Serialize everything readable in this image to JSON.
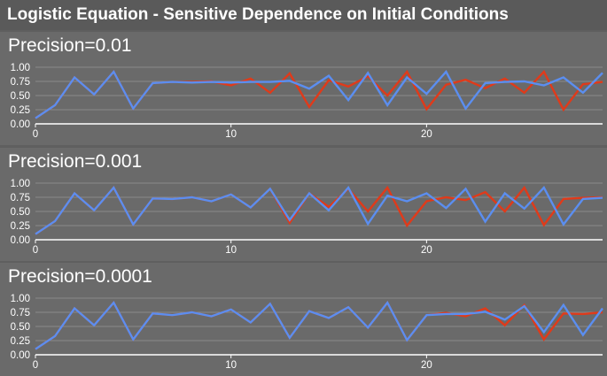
{
  "app_title": "Logistic Equation - Sensitive Dependence on Initial Conditions",
  "colors": {
    "series_a": "#e03a1a",
    "series_b": "#5b8ef0",
    "grid": "#8a8a8a",
    "axis": "#ffffff",
    "panel_bg": "#6a6a6a"
  },
  "chart_data": [
    {
      "type": "line",
      "title": "Precision=0.01",
      "xlim": [
        0,
        29
      ],
      "ylim": [
        0,
        1
      ],
      "x_ticks": [
        0,
        10,
        20
      ],
      "y_ticks": [
        "1.00",
        "0.75",
        "0.50",
        "0.25",
        "0.00"
      ],
      "x": [
        0,
        1,
        2,
        3,
        4,
        5,
        6,
        7,
        8,
        9,
        10,
        11,
        12,
        13,
        14,
        15,
        16,
        17,
        18,
        19,
        20,
        21,
        22,
        23,
        24,
        25,
        26,
        27,
        28,
        29
      ],
      "series": [
        {
          "values": [
            0.1,
            0.33,
            0.82,
            0.52,
            0.92,
            0.27,
            0.72,
            0.74,
            0.74,
            0.75,
            0.68,
            0.8,
            0.55,
            0.89,
            0.3,
            0.77,
            0.66,
            0.84,
            0.5,
            0.92,
            0.26,
            0.69,
            0.78,
            0.63,
            0.8,
            0.55,
            0.92,
            0.25,
            0.7,
            0.74
          ]
        },
        {
          "values": [
            0.1,
            0.33,
            0.82,
            0.52,
            0.92,
            0.27,
            0.72,
            0.74,
            0.73,
            0.74,
            0.73,
            0.74,
            0.74,
            0.76,
            0.62,
            0.85,
            0.42,
            0.9,
            0.33,
            0.82,
            0.53,
            0.92,
            0.27,
            0.72,
            0.74,
            0.75,
            0.68,
            0.82,
            0.55,
            0.9
          ]
        }
      ]
    },
    {
      "type": "line",
      "title": "Precision=0.001",
      "xlim": [
        0,
        29
      ],
      "ylim": [
        0,
        1
      ],
      "x_ticks": [
        0,
        10,
        20
      ],
      "y_ticks": [
        "1.00",
        "0.75",
        "0.50",
        "0.25",
        "0.00"
      ],
      "x": [
        0,
        1,
        2,
        3,
        4,
        5,
        6,
        7,
        8,
        9,
        10,
        11,
        12,
        13,
        14,
        15,
        16,
        17,
        18,
        19,
        20,
        21,
        22,
        23,
        24,
        25,
        26,
        27,
        28,
        29
      ],
      "series": [
        {
          "values": [
            0.1,
            0.33,
            0.82,
            0.52,
            0.92,
            0.27,
            0.73,
            0.72,
            0.75,
            0.68,
            0.8,
            0.57,
            0.9,
            0.3,
            0.82,
            0.58,
            0.9,
            0.5,
            0.92,
            0.25,
            0.68,
            0.75,
            0.7,
            0.84,
            0.5,
            0.92,
            0.26,
            0.72,
            0.74,
            0.75
          ]
        },
        {
          "values": [
            0.1,
            0.33,
            0.82,
            0.52,
            0.92,
            0.27,
            0.73,
            0.72,
            0.75,
            0.68,
            0.8,
            0.57,
            0.9,
            0.35,
            0.82,
            0.52,
            0.92,
            0.28,
            0.78,
            0.68,
            0.82,
            0.56,
            0.9,
            0.32,
            0.82,
            0.55,
            0.92,
            0.27,
            0.72,
            0.74
          ]
        }
      ]
    },
    {
      "type": "line",
      "title": "Precision=0.0001",
      "xlim": [
        0,
        29
      ],
      "ylim": [
        0,
        1
      ],
      "x_ticks": [
        0,
        10,
        20
      ],
      "y_ticks": [
        "1.00",
        "0.75",
        "0.50",
        "0.25",
        "0.00"
      ],
      "x": [
        0,
        1,
        2,
        3,
        4,
        5,
        6,
        7,
        8,
        9,
        10,
        11,
        12,
        13,
        14,
        15,
        16,
        17,
        18,
        19,
        20,
        21,
        22,
        23,
        24,
        25,
        26,
        27,
        28,
        29
      ],
      "series": [
        {
          "values": [
            0.1,
            0.33,
            0.82,
            0.52,
            0.92,
            0.27,
            0.73,
            0.7,
            0.75,
            0.68,
            0.8,
            0.57,
            0.9,
            0.3,
            0.77,
            0.65,
            0.84,
            0.48,
            0.92,
            0.26,
            0.7,
            0.74,
            0.68,
            0.82,
            0.52,
            0.88,
            0.27,
            0.73,
            0.72,
            0.75
          ]
        },
        {
          "values": [
            0.1,
            0.33,
            0.82,
            0.52,
            0.92,
            0.27,
            0.73,
            0.7,
            0.75,
            0.68,
            0.8,
            0.57,
            0.9,
            0.3,
            0.77,
            0.65,
            0.84,
            0.48,
            0.92,
            0.26,
            0.7,
            0.72,
            0.72,
            0.76,
            0.62,
            0.86,
            0.4,
            0.88,
            0.35,
            0.82
          ]
        }
      ]
    }
  ]
}
